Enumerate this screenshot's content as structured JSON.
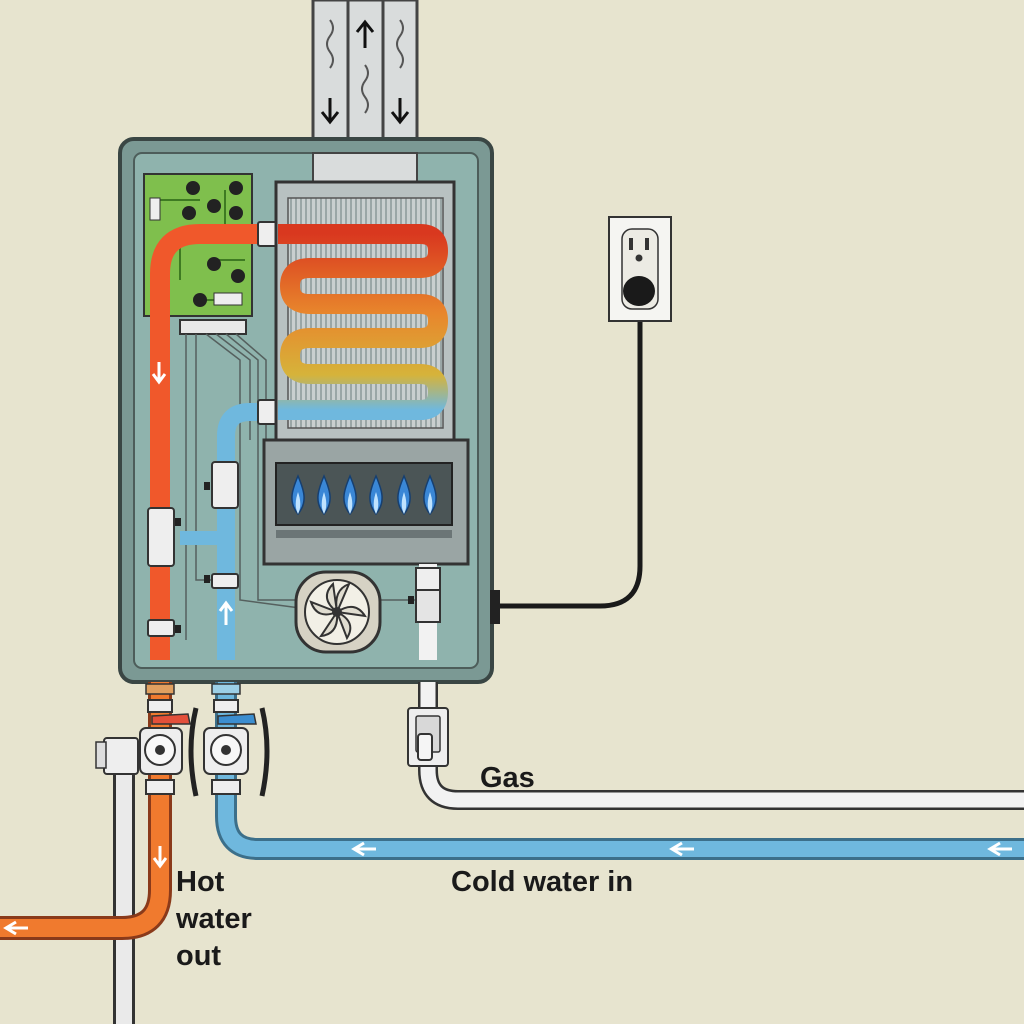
{
  "labels": {
    "gas": "Gas",
    "cold_water_in": "Cold water in",
    "hot_water_out": [
      "Hot",
      "water",
      "out"
    ]
  },
  "colors": {
    "background": "#e7e4cf",
    "unit_body": "#8fb3ad",
    "hot_pipe": "#f0582b",
    "hot_pipe_outlet": "#f07a2e",
    "cold_pipe": "#6fb8de",
    "gas_pipe": "#f2f2f2",
    "circuit_board": "#7fbf4d",
    "flame": "#3a87d6",
    "cord": "#1a1a1a"
  },
  "icons": [
    "up-arrow-icon",
    "down-arrow-icon",
    "left-arrow-icon",
    "flame-icon",
    "fan-icon",
    "outlet-icon",
    "valve-icon"
  ]
}
